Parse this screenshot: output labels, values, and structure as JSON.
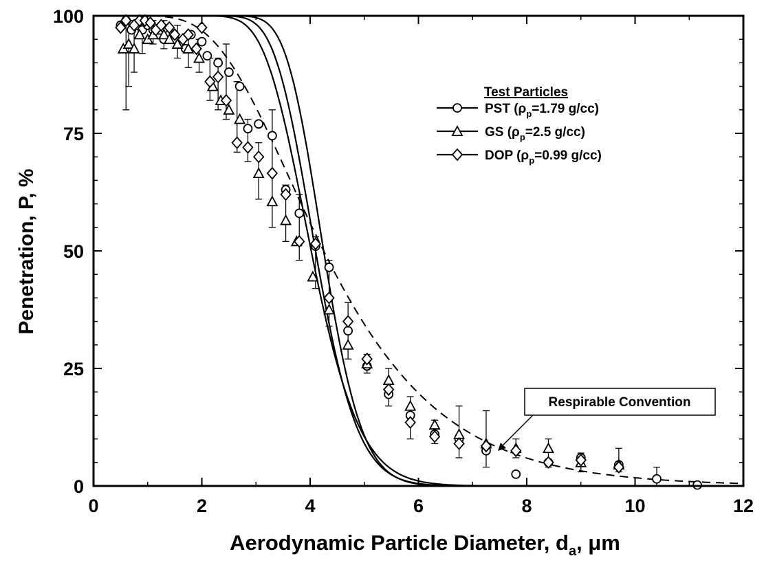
{
  "chart_data": {
    "type": "scatter",
    "xlabel": "Aerodynamic Particle Diameter, d",
    "xlabel_subscript": "a",
    "xlabel_unit": ", μm",
    "ylabel": "Penetration, P, %",
    "xlim": [
      0,
      12
    ],
    "ylim": [
      0,
      100
    ],
    "x_ticks": [
      "0",
      "2",
      "4",
      "6",
      "8",
      "10",
      "12"
    ],
    "y_ticks": [
      "0",
      "25",
      "50",
      "75",
      "100"
    ],
    "grid": false,
    "legend_position": "top-right",
    "legend_title": "Test Particles",
    "annotation": "Respirable Convention",
    "series": [
      {
        "name": "PST",
        "label_prefix": "PST (ρ",
        "label_sub": "p",
        "label_suffix": "=1.79 g/cc)",
        "marker": "circle",
        "fit_d50": 4.25,
        "fit_sigma": 1.14,
        "points": [
          {
            "x": 0.5,
            "y": 98
          },
          {
            "x": 0.6,
            "y": 99
          },
          {
            "x": 0.7,
            "y": 97
          },
          {
            "x": 0.8,
            "y": 98
          },
          {
            "x": 0.9,
            "y": 97
          },
          {
            "x": 1.0,
            "y": 98
          },
          {
            "x": 1.1,
            "y": 97
          },
          {
            "x": 1.2,
            "y": 96
          },
          {
            "x": 1.3,
            "y": 95
          },
          {
            "x": 1.4,
            "y": 96
          },
          {
            "x": 1.5,
            "y": 95
          },
          {
            "x": 1.6,
            "y": 94
          },
          {
            "x": 1.7,
            "y": 93
          },
          {
            "x": 1.8,
            "y": 96
          },
          {
            "x": 2.0,
            "y": 94.5
          },
          {
            "x": 2.1,
            "y": 91.5
          },
          {
            "x": 2.3,
            "y": 90
          },
          {
            "x": 2.5,
            "y": 88
          },
          {
            "x": 2.7,
            "y": 85
          },
          {
            "x": 2.85,
            "y": 76
          },
          {
            "x": 3.05,
            "y": 77
          },
          {
            "x": 3.3,
            "y": 74.5
          },
          {
            "x": 3.55,
            "y": 63
          },
          {
            "x": 3.8,
            "y": 58
          },
          {
            "x": 4.1,
            "y": 51
          },
          {
            "x": 4.35,
            "y": 46.5
          },
          {
            "x": 4.7,
            "y": 33
          },
          {
            "x": 5.05,
            "y": 25.5
          },
          {
            "x": 5.45,
            "y": 19.5
          },
          {
            "x": 5.85,
            "y": 15
          },
          {
            "x": 6.3,
            "y": 11
          },
          {
            "x": 6.75,
            "y": 10
          },
          {
            "x": 7.25,
            "y": 7.5
          },
          {
            "x": 7.8,
            "y": 2.5
          },
          {
            "x": 8.4,
            "y": 5
          },
          {
            "x": 9.0,
            "y": 6
          },
          {
            "x": 9.7,
            "y": 4.5
          },
          {
            "x": 10.4,
            "y": 1.5
          },
          {
            "x": 11.15,
            "y": 0.2
          }
        ]
      },
      {
        "name": "GS",
        "label_prefix": "GS (ρ",
        "label_sub": "p",
        "label_suffix": "=2.5 g/cc)",
        "marker": "triangle",
        "fit_d50": 4.02,
        "fit_sigma": 1.19,
        "points": [
          {
            "x": 0.55,
            "y": 93
          },
          {
            "x": 0.65,
            "y": 94
          },
          {
            "x": 0.75,
            "y": 93
          },
          {
            "x": 0.85,
            "y": 96
          },
          {
            "x": 1.0,
            "y": 95
          },
          {
            "x": 1.1,
            "y": 96
          },
          {
            "x": 1.2,
            "y": 97
          },
          {
            "x": 1.3,
            "y": 96
          },
          {
            "x": 1.4,
            "y": 95
          },
          {
            "x": 1.55,
            "y": 94
          },
          {
            "x": 1.75,
            "y": 93
          },
          {
            "x": 1.95,
            "y": 91
          },
          {
            "x": 2.2,
            "y": 85
          },
          {
            "x": 2.35,
            "y": 82
          },
          {
            "x": 2.5,
            "y": 80
          },
          {
            "x": 2.7,
            "y": 78
          },
          {
            "x": 3.05,
            "y": 66.5
          },
          {
            "x": 3.3,
            "y": 60.5
          },
          {
            "x": 3.55,
            "y": 56.5
          },
          {
            "x": 3.75,
            "y": 52
          },
          {
            "x": 4.05,
            "y": 44.5
          },
          {
            "x": 4.35,
            "y": 37.5
          },
          {
            "x": 4.7,
            "y": 30
          },
          {
            "x": 5.05,
            "y": 26
          },
          {
            "x": 5.45,
            "y": 22.5
          },
          {
            "x": 5.85,
            "y": 17
          },
          {
            "x": 6.3,
            "y": 13
          },
          {
            "x": 6.75,
            "y": 11
          },
          {
            "x": 7.25,
            "y": 9
          },
          {
            "x": 7.8,
            "y": 8
          },
          {
            "x": 8.4,
            "y": 8
          },
          {
            "x": 9.0,
            "y": 5
          },
          {
            "x": 9.7,
            "y": 4.5
          }
        ]
      },
      {
        "name": "DOP",
        "label_prefix": "DOP (ρ",
        "label_sub": "p",
        "label_suffix": "=0.99 g/cc)",
        "marker": "diamond",
        "fit_d50": 4.1,
        "fit_sigma": 1.16,
        "points": [
          {
            "x": 0.5,
            "y": 97.5
          },
          {
            "x": 0.6,
            "y": 99
          },
          {
            "x": 0.75,
            "y": 98
          },
          {
            "x": 0.85,
            "y": 99
          },
          {
            "x": 0.95,
            "y": 99
          },
          {
            "x": 1.05,
            "y": 98.5
          },
          {
            "x": 1.15,
            "y": 97
          },
          {
            "x": 1.25,
            "y": 98
          },
          {
            "x": 1.4,
            "y": 97.5
          },
          {
            "x": 1.5,
            "y": 96
          },
          {
            "x": 1.65,
            "y": 95
          },
          {
            "x": 1.75,
            "y": 96
          },
          {
            "x": 1.9,
            "y": 93
          },
          {
            "x": 2.0,
            "y": 97.5
          },
          {
            "x": 2.15,
            "y": 86
          },
          {
            "x": 2.3,
            "y": 87
          },
          {
            "x": 2.45,
            "y": 82
          },
          {
            "x": 2.65,
            "y": 73
          },
          {
            "x": 2.85,
            "y": 72
          },
          {
            "x": 3.05,
            "y": 70
          },
          {
            "x": 3.3,
            "y": 66.5
          },
          {
            "x": 3.55,
            "y": 62
          },
          {
            "x": 3.8,
            "y": 52
          },
          {
            "x": 4.1,
            "y": 51.5
          },
          {
            "x": 4.35,
            "y": 40
          },
          {
            "x": 4.7,
            "y": 35
          },
          {
            "x": 5.05,
            "y": 27
          },
          {
            "x": 5.45,
            "y": 20.5
          },
          {
            "x": 5.85,
            "y": 13.5
          },
          {
            "x": 6.3,
            "y": 10.5
          },
          {
            "x": 6.75,
            "y": 9
          },
          {
            "x": 7.25,
            "y": 8.5
          },
          {
            "x": 7.8,
            "y": 7.5
          },
          {
            "x": 8.4,
            "y": 5
          },
          {
            "x": 9.0,
            "y": 5.5
          },
          {
            "x": 9.7,
            "y": 4
          }
        ]
      }
    ],
    "error_bars": [
      {
        "x": 0.6,
        "lo": 80,
        "hi": 99
      },
      {
        "x": 0.65,
        "lo": 85,
        "hi": 99
      },
      {
        "x": 0.75,
        "lo": 88,
        "hi": 99
      },
      {
        "x": 0.9,
        "lo": 92,
        "hi": 99
      },
      {
        "x": 1.1,
        "lo": 94,
        "hi": 99
      },
      {
        "x": 1.3,
        "lo": 93,
        "hi": 99
      },
      {
        "x": 1.55,
        "lo": 91,
        "hi": 98
      },
      {
        "x": 1.75,
        "lo": 89,
        "hi": 96
      },
      {
        "x": 1.95,
        "lo": 88,
        "hi": 95
      },
      {
        "x": 2.15,
        "lo": 82,
        "hi": 91
      },
      {
        "x": 2.3,
        "lo": 80,
        "hi": 91
      },
      {
        "x": 2.45,
        "lo": 78,
        "hi": 94
      },
      {
        "x": 2.65,
        "lo": 71,
        "hi": 86
      },
      {
        "x": 2.85,
        "lo": 69,
        "hi": 78
      },
      {
        "x": 3.05,
        "lo": 61,
        "hi": 73
      },
      {
        "x": 3.3,
        "lo": 55,
        "hi": 80
      },
      {
        "x": 3.55,
        "lo": 52,
        "hi": 64
      },
      {
        "x": 3.8,
        "lo": 48,
        "hi": 62
      },
      {
        "x": 4.1,
        "lo": 42,
        "hi": 53
      },
      {
        "x": 4.35,
        "lo": 34,
        "hi": 48
      },
      {
        "x": 4.7,
        "lo": 27,
        "hi": 39
      },
      {
        "x": 5.05,
        "lo": 24,
        "hi": 28
      },
      {
        "x": 5.45,
        "lo": 17,
        "hi": 25
      },
      {
        "x": 5.85,
        "lo": 10,
        "hi": 19
      },
      {
        "x": 6.3,
        "lo": 9,
        "hi": 14
      },
      {
        "x": 6.75,
        "lo": 6,
        "hi": 17
      },
      {
        "x": 7.25,
        "lo": 4,
        "hi": 16
      },
      {
        "x": 7.8,
        "lo": 6,
        "hi": 10
      },
      {
        "x": 8.4,
        "lo": 4,
        "hi": 10
      },
      {
        "x": 9.0,
        "lo": 3,
        "hi": 7
      },
      {
        "x": 9.7,
        "lo": 3,
        "hi": 8
      },
      {
        "x": 10.4,
        "lo": 0,
        "hi": 4
      }
    ],
    "respirable_convention": {
      "line_style": "dashed",
      "d50": 4.25,
      "sigma": 1.5
    }
  }
}
